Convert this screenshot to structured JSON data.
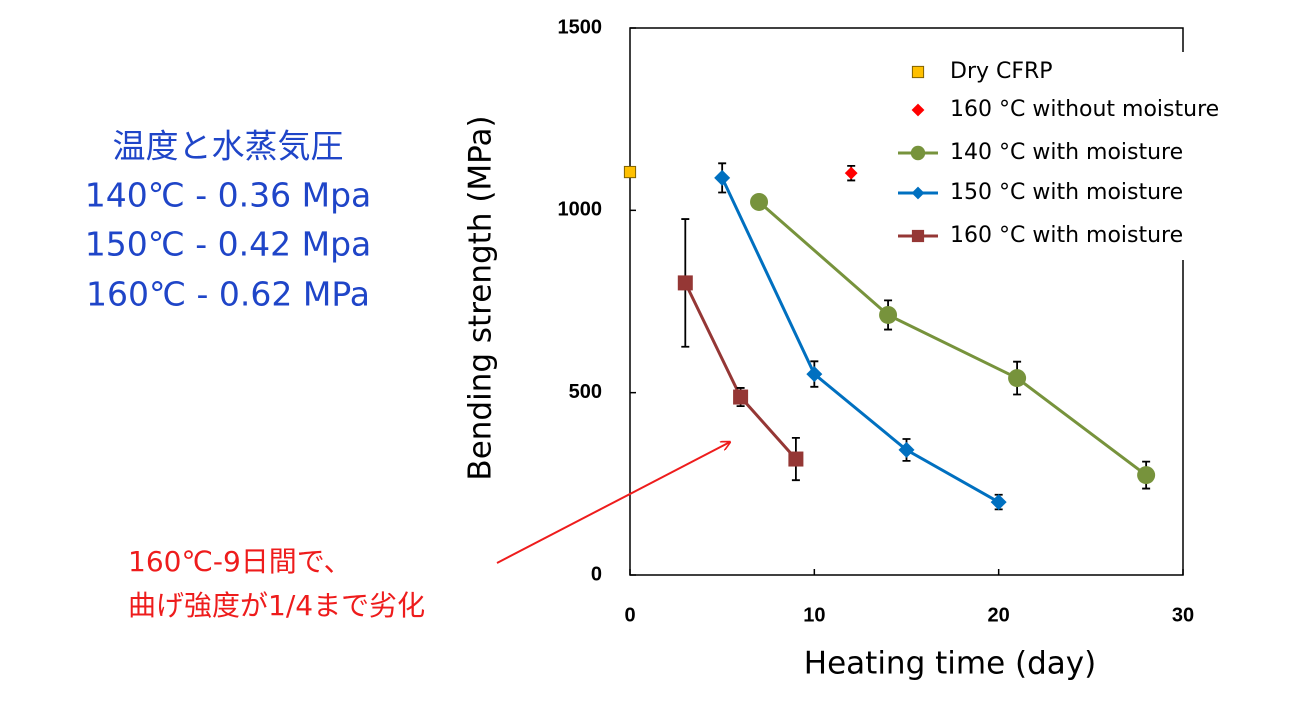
{
  "chart_data": {
    "type": "line",
    "xlabel": "Heating time (day)",
    "ylabel": "Bending strength (MPa)",
    "xlim": [
      0,
      30
    ],
    "xticks": [
      0,
      10,
      20,
      30
    ],
    "ylim": [
      0,
      1500
    ],
    "yticks": [
      0,
      500,
      1000,
      1500
    ],
    "series": [
      {
        "name": "Dry CFRP",
        "color": "#ffc000",
        "marker": "square",
        "line": false,
        "x": [
          0
        ],
        "values": [
          1105
        ],
        "errors": [
          null
        ]
      },
      {
        "name": "160 °C without moisture",
        "color": "#ff0000",
        "marker": "diamond",
        "line": false,
        "x": [
          12
        ],
        "values": [
          1102
        ],
        "errors": [
          20
        ]
      },
      {
        "name": "140 °C with moisture",
        "color": "#77933c",
        "marker": "circle",
        "line": true,
        "x": [
          7,
          14,
          21,
          28
        ],
        "values": [
          1023,
          713,
          540,
          274
        ],
        "errors": [
          null,
          40,
          45,
          37
        ]
      },
      {
        "name": "150 °C with moisture",
        "color": "#0070c0",
        "marker": "diamond",
        "line": true,
        "x": [
          5,
          10,
          15,
          20
        ],
        "values": [
          1089,
          551,
          343,
          200
        ],
        "errors": [
          40,
          35,
          30,
          20
        ]
      },
      {
        "name": "160 °C with moisture",
        "color": "#953735",
        "marker": "square",
        "line": true,
        "x": [
          3,
          6,
          9
        ],
        "values": [
          801,
          488,
          318
        ],
        "errors": [
          175,
          25,
          58
        ]
      }
    ],
    "annotations": {
      "conditions": [
        "温度と水蒸気圧",
        "140℃ - 0.36 Mpa",
        "150℃ - 0.42 Mpa",
        "160℃ - 0.62 MPa"
      ],
      "note": [
        "160℃-9日間で、",
        "曲げ強度が1/4まで劣化"
      ]
    }
  }
}
